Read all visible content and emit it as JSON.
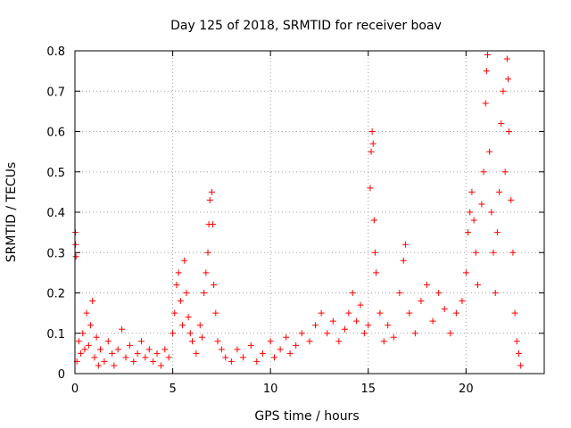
{
  "chart_data": {
    "type": "scatter",
    "title": "Day 125 of 2018, SRMTID for receiver boav",
    "xlabel": "GPS time / hours",
    "ylabel": "SRMTID / TECUs",
    "xlim": [
      0,
      24
    ],
    "ylim": [
      0,
      0.8
    ],
    "x_ticks": [
      0,
      5,
      10,
      15,
      20
    ],
    "y_ticks": [
      0,
      0.1,
      0.2,
      0.3,
      0.4,
      0.5,
      0.6,
      0.7,
      0.8
    ],
    "x_tick_labels": [
      "0",
      "5",
      "10",
      "15",
      "20"
    ],
    "y_tick_labels": [
      "0",
      "0.1",
      "0.2",
      "0.3",
      "0.4",
      "0.5",
      "0.6",
      "0.7",
      "0.8"
    ],
    "grid": true,
    "marker": "+",
    "marker_color": "#ff0000",
    "series": [
      {
        "name": "SRMTID",
        "points": [
          [
            0.02,
            0.35
          ],
          [
            0.03,
            0.32
          ],
          [
            0.05,
            0.29
          ],
          [
            0.1,
            0.03
          ],
          [
            0.2,
            0.08
          ],
          [
            0.3,
            0.05
          ],
          [
            0.4,
            0.1
          ],
          [
            0.5,
            0.06
          ],
          [
            0.6,
            0.15
          ],
          [
            0.7,
            0.07
          ],
          [
            0.8,
            0.12
          ],
          [
            0.9,
            0.18
          ],
          [
            1.0,
            0.04
          ],
          [
            1.1,
            0.09
          ],
          [
            1.2,
            0.02
          ],
          [
            1.3,
            0.06
          ],
          [
            1.5,
            0.03
          ],
          [
            1.7,
            0.08
          ],
          [
            1.9,
            0.05
          ],
          [
            2.0,
            0.02
          ],
          [
            2.2,
            0.06
          ],
          [
            2.4,
            0.11
          ],
          [
            2.6,
            0.04
          ],
          [
            2.8,
            0.07
          ],
          [
            3.0,
            0.03
          ],
          [
            3.2,
            0.05
          ],
          [
            3.4,
            0.08
          ],
          [
            3.6,
            0.04
          ],
          [
            3.8,
            0.06
          ],
          [
            4.0,
            0.03
          ],
          [
            4.2,
            0.05
          ],
          [
            4.4,
            0.02
          ],
          [
            4.6,
            0.06
          ],
          [
            4.8,
            0.04
          ],
          [
            5.0,
            0.1
          ],
          [
            5.1,
            0.15
          ],
          [
            5.2,
            0.22
          ],
          [
            5.3,
            0.25
          ],
          [
            5.4,
            0.18
          ],
          [
            5.5,
            0.12
          ],
          [
            5.6,
            0.28
          ],
          [
            5.7,
            0.2
          ],
          [
            5.8,
            0.14
          ],
          [
            5.9,
            0.1
          ],
          [
            6.0,
            0.08
          ],
          [
            6.2,
            0.05
          ],
          [
            6.4,
            0.12
          ],
          [
            6.5,
            0.09
          ],
          [
            6.6,
            0.2
          ],
          [
            6.7,
            0.25
          ],
          [
            6.8,
            0.3
          ],
          [
            6.85,
            0.37
          ],
          [
            6.9,
            0.43
          ],
          [
            7.0,
            0.45
          ],
          [
            7.05,
            0.37
          ],
          [
            7.1,
            0.22
          ],
          [
            7.2,
            0.15
          ],
          [
            7.3,
            0.08
          ],
          [
            7.5,
            0.06
          ],
          [
            7.7,
            0.04
          ],
          [
            8.0,
            0.03
          ],
          [
            8.3,
            0.06
          ],
          [
            8.6,
            0.04
          ],
          [
            9.0,
            0.07
          ],
          [
            9.3,
            0.03
          ],
          [
            9.6,
            0.05
          ],
          [
            10.0,
            0.08
          ],
          [
            10.2,
            0.04
          ],
          [
            10.5,
            0.06
          ],
          [
            10.8,
            0.09
          ],
          [
            11.0,
            0.05
          ],
          [
            11.3,
            0.07
          ],
          [
            11.6,
            0.1
          ],
          [
            12.0,
            0.08
          ],
          [
            12.3,
            0.12
          ],
          [
            12.6,
            0.15
          ],
          [
            12.9,
            0.1
          ],
          [
            13.2,
            0.13
          ],
          [
            13.5,
            0.08
          ],
          [
            13.8,
            0.11
          ],
          [
            14.0,
            0.15
          ],
          [
            14.2,
            0.2
          ],
          [
            14.4,
            0.13
          ],
          [
            14.6,
            0.17
          ],
          [
            14.8,
            0.1
          ],
          [
            15.0,
            0.12
          ],
          [
            15.1,
            0.46
          ],
          [
            15.15,
            0.55
          ],
          [
            15.2,
            0.6
          ],
          [
            15.25,
            0.57
          ],
          [
            15.3,
            0.38
          ],
          [
            15.35,
            0.3
          ],
          [
            15.4,
            0.25
          ],
          [
            15.6,
            0.15
          ],
          [
            15.8,
            0.08
          ],
          [
            16.0,
            0.12
          ],
          [
            16.3,
            0.09
          ],
          [
            16.6,
            0.2
          ],
          [
            16.8,
            0.28
          ],
          [
            16.9,
            0.32
          ],
          [
            17.1,
            0.15
          ],
          [
            17.4,
            0.1
          ],
          [
            17.7,
            0.18
          ],
          [
            18.0,
            0.22
          ],
          [
            18.3,
            0.13
          ],
          [
            18.6,
            0.2
          ],
          [
            18.9,
            0.16
          ],
          [
            19.2,
            0.1
          ],
          [
            19.5,
            0.15
          ],
          [
            19.8,
            0.18
          ],
          [
            20.0,
            0.25
          ],
          [
            20.1,
            0.35
          ],
          [
            20.2,
            0.4
          ],
          [
            20.3,
            0.45
          ],
          [
            20.4,
            0.38
          ],
          [
            20.5,
            0.3
          ],
          [
            20.6,
            0.22
          ],
          [
            20.8,
            0.42
          ],
          [
            20.9,
            0.5
          ],
          [
            21.0,
            0.67
          ],
          [
            21.05,
            0.75
          ],
          [
            21.1,
            0.79
          ],
          [
            21.2,
            0.55
          ],
          [
            21.3,
            0.4
          ],
          [
            21.4,
            0.3
          ],
          [
            21.5,
            0.2
          ],
          [
            21.6,
            0.35
          ],
          [
            21.7,
            0.45
          ],
          [
            21.8,
            0.62
          ],
          [
            21.9,
            0.7
          ],
          [
            22.0,
            0.5
          ],
          [
            22.1,
            0.78
          ],
          [
            22.15,
            0.73
          ],
          [
            22.2,
            0.6
          ],
          [
            22.3,
            0.43
          ],
          [
            22.4,
            0.3
          ],
          [
            22.5,
            0.15
          ],
          [
            22.6,
            0.08
          ],
          [
            22.7,
            0.05
          ],
          [
            22.8,
            0.02
          ]
        ]
      }
    ]
  }
}
